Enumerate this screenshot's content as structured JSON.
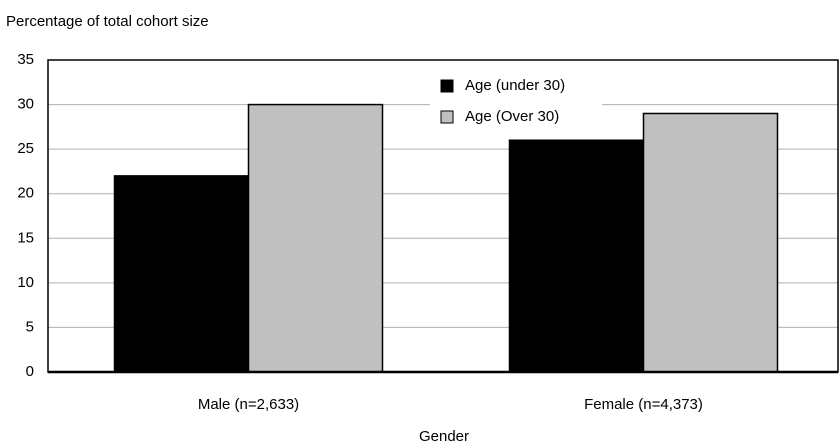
{
  "chart_data": {
    "type": "bar",
    "y_label": "Percentage of total cohort size",
    "x_label": "Gender",
    "categories": [
      "Male (n=2,633)",
      "Female (n=4,373)"
    ],
    "series": [
      {
        "name": "Age (under 30)",
        "color": "#000000",
        "values": [
          22,
          26
        ]
      },
      {
        "name": "Age (Over 30)",
        "color": "#c0c0c0",
        "values": [
          30,
          29
        ]
      }
    ],
    "ylim": [
      0,
      35
    ],
    "yticks": [
      0,
      5,
      10,
      15,
      20,
      25,
      30,
      35
    ],
    "grid": true,
    "legend": "top"
  }
}
